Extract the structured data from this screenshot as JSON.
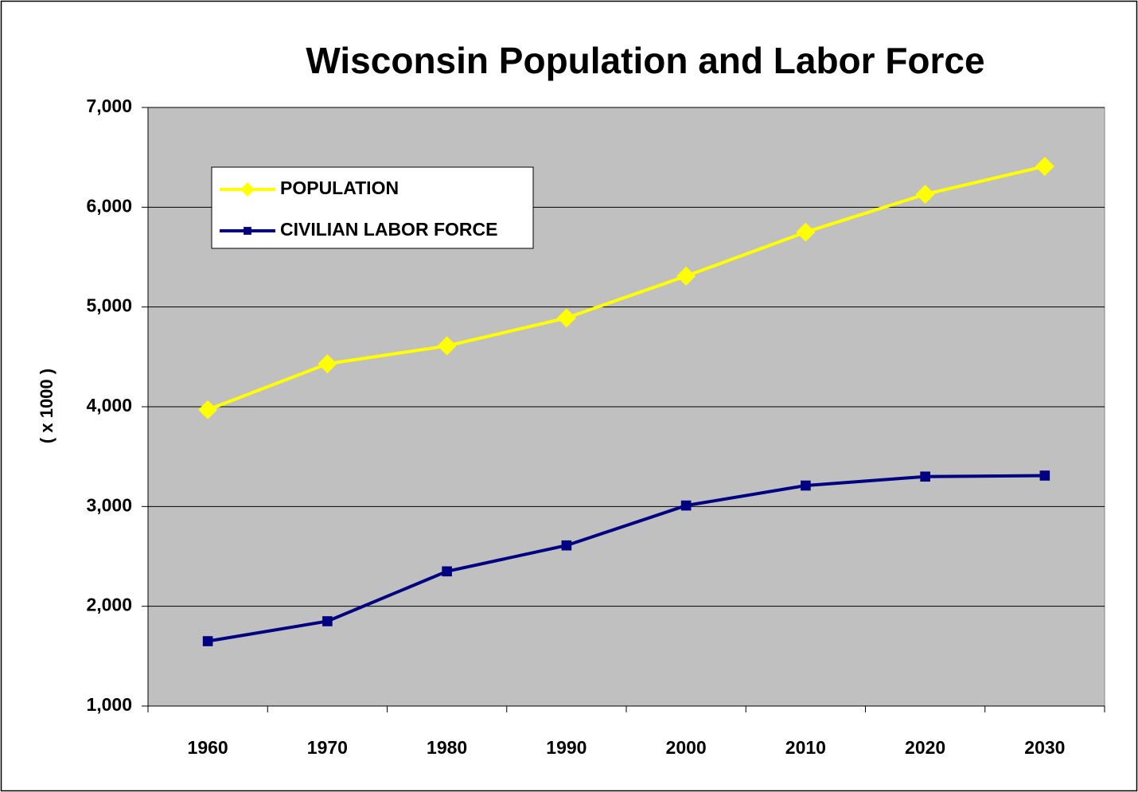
{
  "chart_data": {
    "type": "line",
    "title": "Wisconsin Population and Labor Force",
    "y_label": "( x 1000 )",
    "categories": [
      "1960",
      "1970",
      "1980",
      "1990",
      "2000",
      "2010",
      "2020",
      "2030"
    ],
    "series": [
      {
        "name": "POPULATION",
        "color": "#ffff00",
        "marker": "diamond",
        "values": [
          3970,
          4430,
          4610,
          4890,
          5310,
          5750,
          6130,
          6410
        ]
      },
      {
        "name": "CIVILIAN LABOR FORCE",
        "color": "#000080",
        "marker": "square",
        "values": [
          1650,
          1850,
          2350,
          2610,
          3010,
          3210,
          3300,
          3310
        ]
      }
    ],
    "ylim": [
      1000,
      7000
    ],
    "yticks": [
      {
        "value": 1000,
        "label": "1,000"
      },
      {
        "value": 2000,
        "label": "2,000"
      },
      {
        "value": 3000,
        "label": "3,000"
      },
      {
        "value": 4000,
        "label": "4,000"
      },
      {
        "value": 5000,
        "label": "5,000"
      },
      {
        "value": 6000,
        "label": "6,000"
      },
      {
        "value": 7000,
        "label": "7,000"
      }
    ],
    "grid": true
  }
}
